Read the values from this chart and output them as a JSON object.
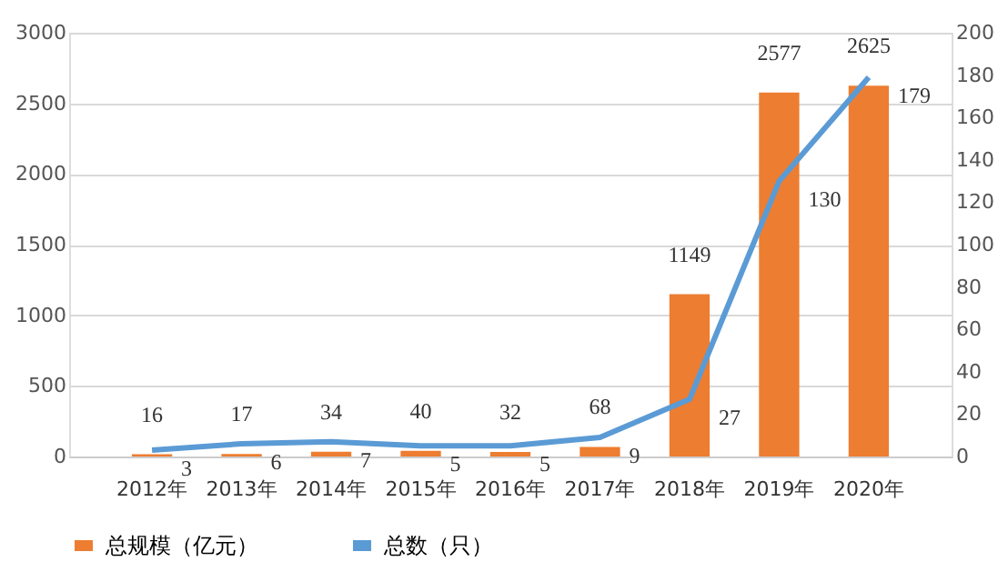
{
  "chart_data": {
    "type": "bar",
    "categories": [
      "2012年",
      "2013年",
      "2014年",
      "2015年",
      "2016年",
      "2017年",
      "2018年",
      "2019年",
      "2020年"
    ],
    "series": [
      {
        "name": "总规模（亿元）",
        "color": "#ed7d31",
        "values": [
          16,
          17,
          34,
          40,
          32,
          68,
          1149,
          2577,
          2625
        ]
      },
      {
        "name": "总数（只）",
        "type": "line",
        "axis": "y2",
        "color": "#5b9bd5",
        "values": [
          3,
          6,
          7,
          5,
          5,
          9,
          27,
          130,
          179
        ]
      }
    ],
    "ylim": [
      0,
      3000
    ],
    "yticks": [
      0,
      500,
      1000,
      1500,
      2000,
      2500,
      3000
    ],
    "y2lim": [
      0,
      200
    ],
    "y2ticks": [
      0,
      20,
      40,
      60,
      80,
      100,
      120,
      140,
      160,
      180,
      200
    ],
    "grid": "y",
    "legend": "bottom",
    "data_labels": true,
    "marker": "none",
    "line_style": "solid"
  }
}
